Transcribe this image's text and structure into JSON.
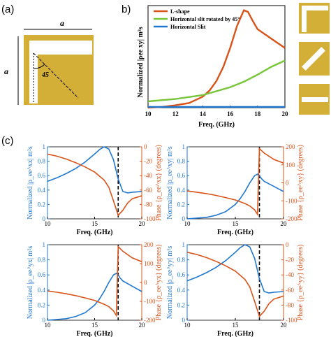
{
  "colors": {
    "gold": "#D4AF37",
    "orange": "#D95319",
    "green": "#77C63A",
    "blue": "#1F77D0",
    "black": "#000000"
  },
  "panels": {
    "a": {
      "label": "(a)",
      "dim_top": "a",
      "dim_left": "a",
      "angle": "45"
    },
    "b": {
      "label": "b)",
      "ylabel": "Normalized |ρ",
      "ylabel_sub": "ee",
      "ylabel_sup": "xy",
      "ylabel_tail": "| m²s",
      "xlabel": "Freq. (GHz)"
    },
    "c": {
      "label": "(c)",
      "xlabel": "Freq. (GHz)"
    }
  },
  "chart_data": [
    {
      "id": "b",
      "type": "line",
      "xlim": [
        10,
        20
      ],
      "ylim": [
        0,
        0.65
      ],
      "xticks": [
        "10",
        "12",
        "14",
        "16",
        "18",
        "20"
      ],
      "legend_position": "top-left",
      "series": [
        {
          "name": "L-shape",
          "color": "#D95319",
          "x": [
            10,
            11,
            12,
            13,
            14,
            14.5,
            15,
            15.5,
            16,
            16.5,
            17,
            17.3,
            17.6,
            18,
            19,
            20
          ],
          "y": [
            0,
            0.005,
            0.015,
            0.03,
            0.07,
            0.11,
            0.17,
            0.26,
            0.38,
            0.52,
            0.62,
            0.61,
            0.56,
            0.5,
            0.44,
            0.38
          ]
        },
        {
          "name": "Horizontal slit rotated by 45°",
          "color": "#77C63A",
          "x": [
            10,
            12,
            14,
            16,
            17,
            18,
            19,
            20
          ],
          "y": [
            0.04,
            0.055,
            0.08,
            0.13,
            0.165,
            0.21,
            0.26,
            0.3
          ]
        },
        {
          "name": "Horizontal Slit",
          "color": "#1F77D0",
          "x": [
            10,
            12,
            14,
            16,
            18,
            20
          ],
          "y": [
            0.005,
            0.005,
            0.005,
            0.005,
            0.005,
            0.005
          ]
        }
      ]
    },
    {
      "id": "c1",
      "type": "line",
      "xlim": [
        10,
        20
      ],
      "ylim_left": [
        0,
        1
      ],
      "ylim_right": [
        -100,
        0
      ],
      "xticks": [
        "10",
        "15",
        "20"
      ],
      "yticks_left": [
        "0",
        "0.2",
        "0.4",
        "0.6",
        "0.8",
        "1"
      ],
      "yticks_right": [
        "0",
        "-20",
        "-40",
        "-60",
        "-80",
        "-100"
      ],
      "ylabel_left": "Normalized |ρ_ee^xx| m²s",
      "ylabel_right": "Phase {ρ_ee^xx} (degrees)",
      "vline_x": 17.5,
      "series": [
        {
          "axis": "left",
          "color": "#1F77D0",
          "x": [
            10,
            11,
            12,
            13,
            14,
            15,
            15.5,
            16,
            16.5,
            17,
            17.5,
            18,
            18.5,
            19,
            20
          ],
          "y": [
            0.52,
            0.57,
            0.63,
            0.7,
            0.79,
            0.9,
            0.96,
            1.0,
            0.97,
            0.82,
            0.55,
            0.38,
            0.36,
            0.37,
            0.38
          ]
        },
        {
          "axis": "right",
          "color": "#D95319",
          "x": [
            10,
            11,
            12,
            13,
            14,
            15,
            16,
            16.5,
            17,
            17.5,
            18,
            18.5,
            19,
            20
          ],
          "y": [
            -10,
            -13,
            -17,
            -22,
            -28,
            -35,
            -46,
            -56,
            -75,
            -95,
            -88,
            -78,
            -72,
            -68
          ]
        }
      ]
    },
    {
      "id": "c2",
      "type": "line",
      "xlim": [
        10,
        20
      ],
      "ylim_left": [
        0,
        1
      ],
      "ylim_right": [
        -200,
        200
      ],
      "xticks": [
        "10",
        "15",
        "20"
      ],
      "yticks_left": [
        "0",
        "0.2",
        "0.4",
        "0.6",
        "0.8",
        "1"
      ],
      "yticks_right": [
        "200",
        "100",
        "0",
        "-100",
        "-200"
      ],
      "ylabel_left": "Normalized |ρ_ee^xy| m²s",
      "ylabel_right": "Phase {ρ_ee^xy} (degrees)",
      "vline_x": 17.5,
      "series": [
        {
          "axis": "left",
          "color": "#1F77D0",
          "x": [
            10,
            12,
            13,
            14,
            15,
            15.5,
            16,
            16.5,
            17,
            17.3,
            17.5,
            17.7,
            18,
            19,
            20
          ],
          "y": [
            0.0,
            0.02,
            0.05,
            0.1,
            0.2,
            0.28,
            0.38,
            0.5,
            0.6,
            0.62,
            0.6,
            0.56,
            0.52,
            0.45,
            0.38
          ]
        },
        {
          "axis": "right",
          "color": "#D95319",
          "x": [
            10,
            11,
            12,
            13,
            14,
            15,
            16,
            16.5,
            17,
            17.3,
            17.5,
            17.6,
            18,
            19,
            20
          ],
          "y": [
            -45,
            -52,
            -60,
            -70,
            -82,
            -95,
            -115,
            -128,
            -150,
            -175,
            190,
            185,
            165,
            130,
            110
          ]
        }
      ]
    },
    {
      "id": "c3",
      "type": "line",
      "xlim": [
        10,
        20
      ],
      "ylim_left": [
        0,
        1
      ],
      "ylim_right": [
        -200,
        200
      ],
      "xticks": [
        "10",
        "15",
        "20"
      ],
      "yticks_left": [
        "0",
        "0.2",
        "0.4",
        "0.6",
        "0.8",
        "1"
      ],
      "yticks_right": [
        "200",
        "100",
        "0",
        "-100",
        "-200"
      ],
      "ylabel_left": "Normalized |ρ_ee^yx| m²s",
      "ylabel_right": "Phase {ρ_ee^yx} (degrees)",
      "vline_x": 17.5,
      "series": [
        {
          "axis": "left",
          "color": "#1F77D0",
          "x": [
            10,
            12,
            13,
            14,
            15,
            15.5,
            16,
            16.5,
            17,
            17.3,
            17.5,
            17.7,
            18,
            19,
            20
          ],
          "y": [
            0.0,
            0.02,
            0.05,
            0.1,
            0.2,
            0.28,
            0.38,
            0.5,
            0.6,
            0.62,
            0.6,
            0.56,
            0.52,
            0.45,
            0.38
          ]
        },
        {
          "axis": "right",
          "color": "#D95319",
          "x": [
            10,
            11,
            12,
            13,
            14,
            15,
            16,
            16.5,
            17,
            17.3,
            17.5,
            17.6,
            18,
            19,
            20
          ],
          "y": [
            -45,
            -52,
            -60,
            -70,
            -82,
            -95,
            -115,
            -128,
            -150,
            -175,
            190,
            185,
            165,
            130,
            110
          ]
        }
      ]
    },
    {
      "id": "c4",
      "type": "line",
      "xlim": [
        10,
        20
      ],
      "ylim_left": [
        0,
        1
      ],
      "ylim_right": [
        -100,
        0
      ],
      "xticks": [
        "10",
        "15",
        "20"
      ],
      "yticks_left": [
        "0",
        "0.2",
        "0.4",
        "0.6",
        "0.8",
        "1"
      ],
      "yticks_right": [
        "0",
        "-20",
        "-40",
        "-60",
        "-80",
        "-100"
      ],
      "ylabel_left": "Normalized |ρ_ee^yy| m²s",
      "ylabel_right": "Phase {ρ_ee^yy} (degrees)",
      "vline_x": 17.5,
      "series": [
        {
          "axis": "left",
          "color": "#1F77D0",
          "x": [
            10,
            11,
            12,
            13,
            14,
            15,
            15.5,
            16,
            16.5,
            17,
            17.5,
            18,
            18.5,
            19,
            20
          ],
          "y": [
            0.52,
            0.57,
            0.63,
            0.7,
            0.79,
            0.9,
            0.96,
            1.0,
            0.97,
            0.82,
            0.55,
            0.38,
            0.36,
            0.37,
            0.38
          ]
        },
        {
          "axis": "right",
          "color": "#D95319",
          "x": [
            10,
            11,
            12,
            13,
            14,
            15,
            16,
            16.5,
            17,
            17.5,
            18,
            18.5,
            19,
            20
          ],
          "y": [
            -10,
            -13,
            -17,
            -22,
            -28,
            -35,
            -46,
            -56,
            -75,
            -95,
            -88,
            -78,
            -72,
            -68
          ]
        }
      ]
    }
  ]
}
